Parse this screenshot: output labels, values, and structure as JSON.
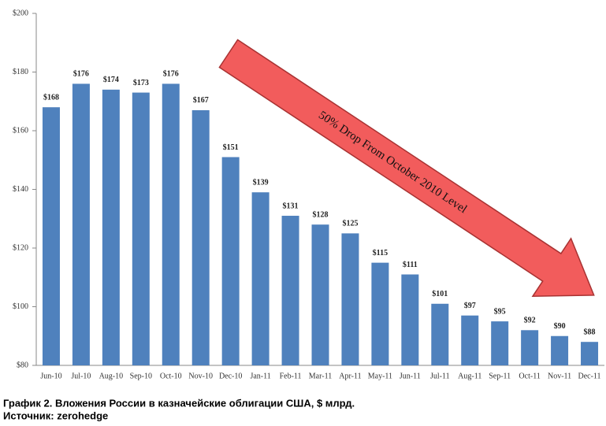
{
  "chart_data": {
    "type": "bar",
    "annotation": "50% Drop From October 2010 Level",
    "caption": "График 2. Вложения России в казначейские облигации США, $ млрд.",
    "source": "Источник: zerohedge",
    "categories": [
      "Jun-10",
      "Jul-10",
      "Aug-10",
      "Sep-10",
      "Oct-10",
      "Nov-10",
      "Dec-10",
      "Jan-11",
      "Feb-11",
      "Mar-11",
      "Apr-11",
      "May-11",
      "Jun-11",
      "Jul-11",
      "Aug-11",
      "Sep-11",
      "Oct-11",
      "Nov-11",
      "Dec-11"
    ],
    "values": [
      168,
      176,
      174,
      173,
      176,
      167,
      151,
      139,
      131,
      128,
      125,
      115,
      111,
      101,
      97,
      95,
      92,
      90,
      88
    ],
    "value_labels": [
      "$168",
      "$176",
      "$174",
      "$173",
      "$176",
      "$167",
      "$151",
      "$139",
      "$131",
      "$128",
      "$125",
      "$115",
      "$111",
      "$101",
      "$97",
      "$95",
      "$92",
      "$90",
      "$88"
    ],
    "color": "#4f81bd",
    "ylim": [
      80,
      200
    ],
    "yticks": [
      {
        "value": 80,
        "label": "$80"
      },
      {
        "value": 100,
        "label": "$100"
      },
      {
        "value": 120,
        "label": "$120"
      },
      {
        "value": 140,
        "label": "$140"
      },
      {
        "value": 160,
        "label": "$160"
      },
      {
        "value": 180,
        "label": "$180"
      },
      {
        "value": 200,
        "label": "$200"
      }
    ],
    "grid": false
  }
}
